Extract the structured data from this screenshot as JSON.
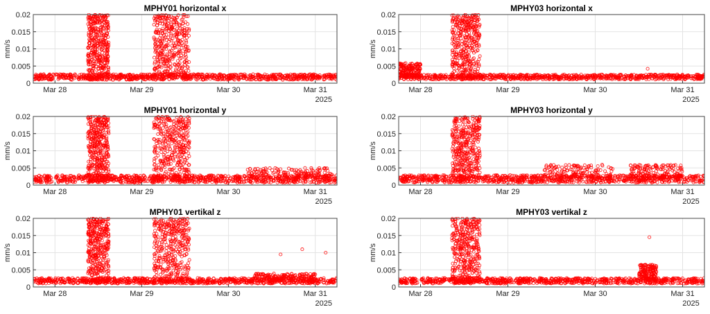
{
  "chart_data": [
    {
      "type": "scatter",
      "title": "MPHY01 horizontal x",
      "ylabel": "mm/s",
      "ylim": [
        0,
        0.02
      ],
      "yticks": [
        "0",
        "0.005",
        "0.01",
        "0.015",
        "0.02"
      ],
      "xlim": [
        27.75,
        31.25
      ],
      "xticks": [
        {
          "v": 28,
          "label": "Mar 28"
        },
        {
          "v": 29,
          "label": "Mar 29"
        },
        {
          "v": 30,
          "label": "Mar 30"
        },
        {
          "v": 31,
          "label": "Mar 31"
        }
      ],
      "year_label": "2025",
      "grid": true,
      "color": "#ff0000",
      "pattern": {
        "base": 0.0018,
        "spread": 0.0009,
        "gap": [
          28.24,
          28.26
        ],
        "gap2": [
          31.07,
          31.08
        ],
        "bursts": [
          {
            "start": 28.38,
            "end": 28.62,
            "max": 0.02
          },
          {
            "start": 29.14,
            "end": 29.55,
            "max": 0.02
          }
        ],
        "bumps": [],
        "outliers": []
      }
    },
    {
      "type": "scatter",
      "title": "MPHY03 horizontal x",
      "ylabel": "mm/s",
      "ylim": [
        0,
        0.02
      ],
      "yticks": [
        "0",
        "0.005",
        "0.01",
        "0.015",
        "0.02"
      ],
      "xlim": [
        27.75,
        31.25
      ],
      "xticks": [
        {
          "v": 28,
          "label": "Mar 28"
        },
        {
          "v": 29,
          "label": "Mar 29"
        },
        {
          "v": 30,
          "label": "Mar 30"
        },
        {
          "v": 31,
          "label": "Mar 31"
        }
      ],
      "year_label": "2025",
      "grid": true,
      "color": "#ff0000",
      "pattern": {
        "base": 0.0018,
        "spread": 0.0008,
        "gap": [
          28.3,
          28.32
        ],
        "gap2": [],
        "bursts": [
          {
            "start": 28.36,
            "end": 28.68,
            "max": 0.02
          }
        ],
        "bumps": [
          {
            "start": 27.75,
            "end": 28.0,
            "max": 0.006
          }
        ],
        "outliers": [
          {
            "x": 30.6,
            "y": 0.0042
          }
        ]
      }
    },
    {
      "type": "scatter",
      "title": "MPHY01 horizontal y",
      "ylabel": "mm/s",
      "ylim": [
        0,
        0.02
      ],
      "yticks": [
        "0",
        "0.005",
        "0.01",
        "0.015",
        "0.02"
      ],
      "xlim": [
        27.75,
        31.25
      ],
      "xticks": [
        {
          "v": 28,
          "label": "Mar 28"
        },
        {
          "v": 29,
          "label": "Mar 29"
        },
        {
          "v": 30,
          "label": "Mar 30"
        },
        {
          "v": 31,
          "label": "Mar 31"
        }
      ],
      "year_label": "2025",
      "grid": true,
      "color": "#ff0000",
      "pattern": {
        "base": 0.0018,
        "spread": 0.0012,
        "gap": [
          28.24,
          28.26
        ],
        "gap2": [
          31.07,
          31.08
        ],
        "bursts": [
          {
            "start": 28.38,
            "end": 28.62,
            "max": 0.02
          },
          {
            "start": 29.14,
            "end": 29.55,
            "max": 0.02
          }
        ],
        "bumps": [
          {
            "start": 30.2,
            "end": 31.2,
            "max": 0.005
          }
        ],
        "outliers": []
      }
    },
    {
      "type": "scatter",
      "title": "MPHY03 horizontal y",
      "ylabel": "mm/s",
      "ylim": [
        0,
        0.02
      ],
      "yticks": [
        "0",
        "0.005",
        "0.01",
        "0.015",
        "0.02"
      ],
      "xlim": [
        27.75,
        31.25
      ],
      "xticks": [
        {
          "v": 28,
          "label": "Mar 28"
        },
        {
          "v": 29,
          "label": "Mar 29"
        },
        {
          "v": 30,
          "label": "Mar 30"
        },
        {
          "v": 31,
          "label": "Mar 31"
        }
      ],
      "year_label": "2025",
      "grid": true,
      "color": "#ff0000",
      "pattern": {
        "base": 0.0018,
        "spread": 0.0012,
        "gap": [
          28.3,
          28.32
        ],
        "gap2": [],
        "bursts": [
          {
            "start": 28.36,
            "end": 28.68,
            "max": 0.02
          }
        ],
        "bumps": [
          {
            "start": 29.4,
            "end": 30.2,
            "max": 0.006
          },
          {
            "start": 30.4,
            "end": 31.0,
            "max": 0.006
          }
        ],
        "outliers": []
      }
    },
    {
      "type": "scatter",
      "title": "MPHY01 vertikal z",
      "ylabel": "mm/s",
      "ylim": [
        0,
        0.02
      ],
      "yticks": [
        "0",
        "0.005",
        "0.01",
        "0.015",
        "0.02"
      ],
      "xlim": [
        27.75,
        31.25
      ],
      "xticks": [
        {
          "v": 28,
          "label": "Mar 28"
        },
        {
          "v": 29,
          "label": "Mar 29"
        },
        {
          "v": 30,
          "label": "Mar 30"
        },
        {
          "v": 31,
          "label": "Mar 31"
        }
      ],
      "year_label": "2025",
      "grid": true,
      "color": "#ff0000",
      "pattern": {
        "base": 0.0018,
        "spread": 0.0009,
        "gap": [
          28.24,
          28.26
        ],
        "gap2": [
          31.07,
          31.08
        ],
        "bursts": [
          {
            "start": 28.38,
            "end": 28.62,
            "max": 0.02
          },
          {
            "start": 29.14,
            "end": 29.55,
            "max": 0.02
          }
        ],
        "bumps": [
          {
            "start": 30.3,
            "end": 31.0,
            "max": 0.004
          }
        ],
        "outliers": [
          {
            "x": 30.6,
            "y": 0.0095
          },
          {
            "x": 30.85,
            "y": 0.011
          },
          {
            "x": 31.12,
            "y": 0.01
          }
        ]
      }
    },
    {
      "type": "scatter",
      "title": "MPHY03 vertikal z",
      "ylabel": "mm/s",
      "ylim": [
        0,
        0.02
      ],
      "yticks": [
        "0",
        "0.005",
        "0.01",
        "0.015",
        "0.02"
      ],
      "xlim": [
        27.75,
        31.25
      ],
      "xticks": [
        {
          "v": 28,
          "label": "Mar 28"
        },
        {
          "v": 29,
          "label": "Mar 29"
        },
        {
          "v": 30,
          "label": "Mar 30"
        },
        {
          "v": 31,
          "label": "Mar 31"
        }
      ],
      "year_label": "2025",
      "grid": true,
      "color": "#ff0000",
      "pattern": {
        "base": 0.0018,
        "spread": 0.0009,
        "gap": [
          28.3,
          28.32
        ],
        "gap2": [],
        "bursts": [
          {
            "start": 28.36,
            "end": 28.68,
            "max": 0.02
          }
        ],
        "bumps": [
          {
            "start": 30.5,
            "end": 30.7,
            "max": 0.0065
          }
        ],
        "outliers": [
          {
            "x": 30.62,
            "y": 0.0145
          }
        ]
      }
    }
  ]
}
